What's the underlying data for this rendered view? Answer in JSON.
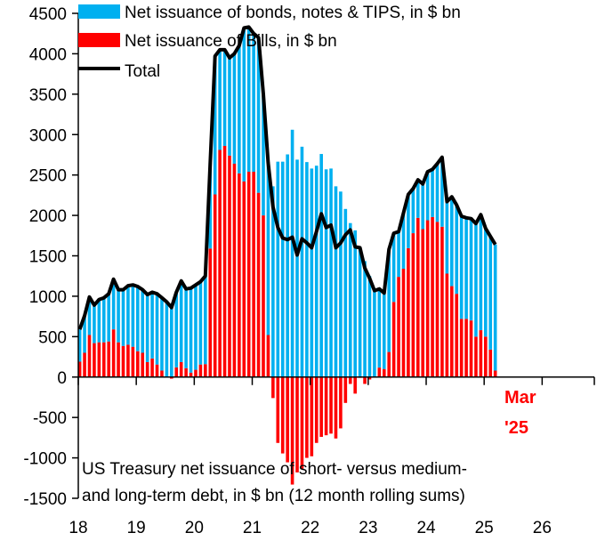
{
  "chart_data": {
    "type": "bar",
    "stacked": true,
    "subtype": "stacked monthly bars with total line",
    "colors": {
      "bonds": "#00B0F0",
      "bills": "#FF0000",
      "total": "#000000"
    },
    "legend": {
      "placement": "top-left",
      "entries": [
        "Net issuance of bonds, notes & TIPS, in $ bn",
        "Net issuance of Bills, in $ bn",
        "Total"
      ]
    },
    "annotation": {
      "line1": "Mar",
      "line2": "'25"
    },
    "note": {
      "line1": "US Treasury net issuance of short- versus medium-",
      "line2": "and long-term debt, in $ bn (12 month rolling sums)"
    },
    "xlim": [
      18,
      27
    ],
    "ylim": [
      -1500,
      4500
    ],
    "x_ticks": [
      "18",
      "19",
      "20",
      "21",
      "22",
      "23",
      "24",
      "25",
      "26"
    ],
    "y_ticks": [
      "4500",
      "4000",
      "3500",
      "3000",
      "2500",
      "2000",
      "1500",
      "1000",
      "500",
      "0",
      "-500",
      "-1000",
      "-1500"
    ],
    "grid": false,
    "x_start": "Jan 2018",
    "x_end": "Mar 2025",
    "frequency": "monthly",
    "series": [
      {
        "name": "Net issuance of Bills, in $ bn",
        "values": [
          190,
          300,
          520,
          420,
          430,
          430,
          440,
          590,
          430,
          385,
          400,
          375,
          320,
          300,
          185,
          230,
          155,
          80,
          0,
          -20,
          120,
          185,
          110,
          55,
          90,
          155,
          160,
          1590,
          2260,
          2810,
          2860,
          2740,
          2640,
          2520,
          2420,
          2540,
          2540,
          2280,
          2000,
          520,
          -260,
          -815,
          -945,
          -1055,
          -1330,
          -1180,
          -1140,
          -1000,
          -980,
          -815,
          -740,
          -720,
          -700,
          -760,
          -635,
          -320,
          -85,
          -205,
          -10,
          -85,
          -30,
          0,
          117,
          100,
          310,
          930,
          1240,
          1340,
          1595,
          1780,
          1970,
          1830,
          1940,
          1980,
          1920,
          1860,
          1280,
          1125,
          1030,
          720,
          720,
          700,
          500,
          580,
          500,
          340,
          80
        ]
      },
      {
        "name": "Total",
        "values": [
          590,
          760,
          990,
          890,
          960,
          980,
          1030,
          1210,
          1080,
          1080,
          1130,
          1140,
          1120,
          1080,
          1020,
          1050,
          1030,
          980,
          930,
          860,
          1050,
          1190,
          1090,
          1100,
          1140,
          1180,
          1250,
          2650,
          3970,
          4050,
          4050,
          3950,
          4000,
          4100,
          4320,
          4330,
          4250,
          4200,
          3500,
          2650,
          2100,
          1850,
          1720,
          1700,
          1730,
          1510,
          1710,
          1660,
          1600,
          1800,
          2020,
          1850,
          1880,
          1600,
          1660,
          1760,
          1820,
          1610,
          1600,
          1350,
          1220,
          1070,
          1090,
          1040,
          1580,
          1780,
          1800,
          2030,
          2260,
          2330,
          2440,
          2390,
          2540,
          2570,
          2640,
          2720,
          2170,
          2230,
          2130,
          1990,
          1970,
          1960,
          1900,
          2010,
          1840,
          1740,
          1640
        ]
      }
    ]
  }
}
